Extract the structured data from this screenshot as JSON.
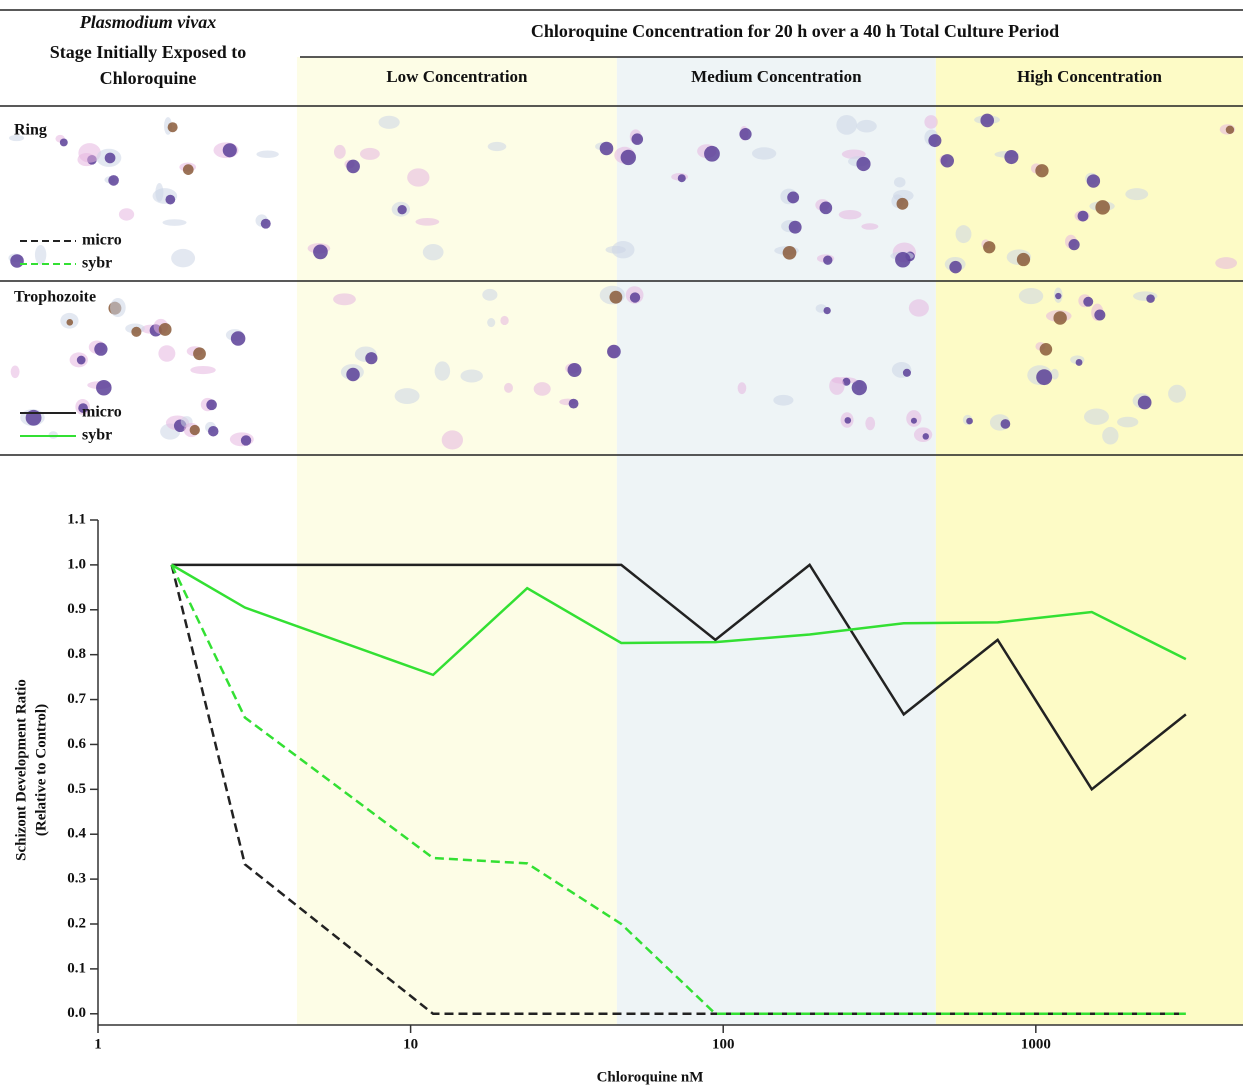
{
  "header": {
    "stage_title": [
      "Plasmodium vivax",
      "Stage Initially Exposed to",
      "Chloroquine"
    ],
    "title": "Chloroquine Concentration for 20 h over a 40 h Total Culture Period"
  },
  "rows": [
    {
      "label": "Ring"
    },
    {
      "label": "Trophozoite"
    }
  ],
  "chart_data": {
    "type": "line",
    "x_label": "Chloroquine nM",
    "y_label": [
      "Schizont Development Ratio",
      "(Relative to Control)"
    ],
    "xscale": "log",
    "xlim": [
      1,
      4600
    ],
    "xticks": [
      1,
      10,
      100,
      1000
    ],
    "ylim": [
      -0.025,
      1.1
    ],
    "yticks": [
      {
        "value": 0,
        "label": "0.0"
      },
      0.1,
      0.2,
      0.3,
      0.4,
      0.5,
      0.6,
      0.7,
      0.8,
      0.9,
      {
        "value": 1,
        "label": "1.0"
      },
      1.1
    ],
    "bands": [
      {
        "name": "Low Concentration",
        "color": "#fdfde6",
        "range": [
          4.33,
          45.7
        ]
      },
      {
        "name": "Medium Concentration",
        "color": "#eef4f6",
        "range": [
          45.7,
          479
        ]
      },
      {
        "name": "High Concentration",
        "color": "#fdfbc6",
        "range": [
          479,
          4600
        ]
      }
    ],
    "x": [
      1.72,
      2.95,
      11.8,
      23.6,
      47.2,
      94.4,
      189,
      378,
      755,
      1510,
      3020
    ],
    "series": [
      {
        "name": "micro",
        "color": "#222222",
        "dashed": true,
        "values": [
          1.0,
          0.333,
          0,
          0,
          0,
          0,
          0,
          0,
          0,
          0,
          0
        ]
      },
      {
        "name": "sybr",
        "color": "#33e033",
        "dashed": true,
        "values": [
          1.0,
          0.66,
          0.347,
          0.335,
          0.2,
          0,
          0,
          0,
          0,
          0,
          0
        ]
      },
      {
        "name": "micro",
        "color": "#222222",
        "dashed": false,
        "values": [
          1.0,
          1.0,
          1.0,
          1.0,
          1.0,
          0.833,
          1.0,
          0.667,
          0.833,
          0.5,
          0.667
        ]
      },
      {
        "name": "sybr",
        "color": "#33e033",
        "dashed": false,
        "values": [
          1.0,
          0.905,
          0.755,
          0.948,
          0.826,
          0.828,
          0.845,
          0.87,
          0.872,
          0.895,
          0.79
        ]
      }
    ]
  }
}
